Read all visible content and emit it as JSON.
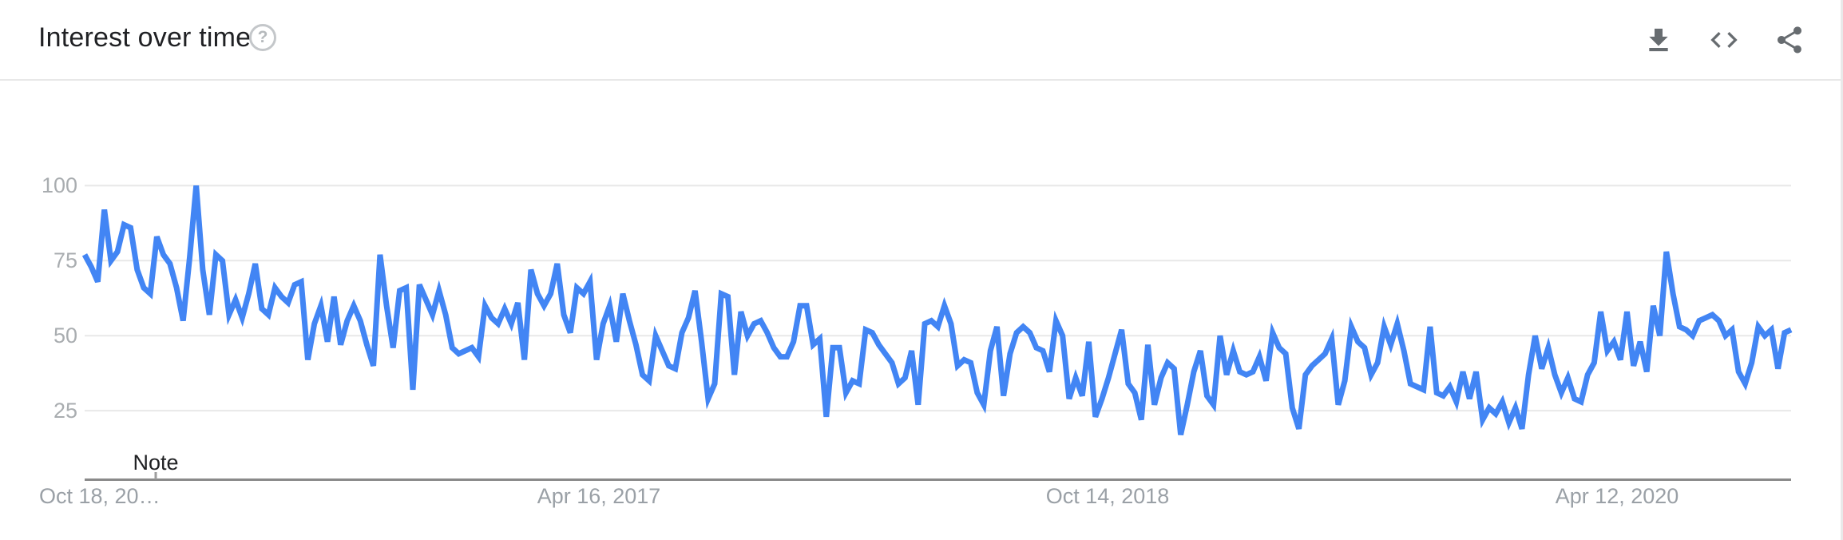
{
  "header": {
    "title": "Interest over time",
    "help_icon": "help-circle-icon",
    "help_glyph": "?",
    "action_icons": [
      "download-icon",
      "embed-code-icon",
      "share-icon"
    ]
  },
  "annotations": {
    "note_label": "Note"
  },
  "colors": {
    "line": "#4285f4",
    "gridline": "#e8e8e8",
    "axis_line": "#8a8a8a",
    "icon_gray": "#676c70",
    "x_axis_text": "#9aa0a6",
    "y_axis_text": "#a9adb0",
    "title_text": "#202124"
  },
  "chart_data": {
    "type": "line",
    "title": "Interest over time",
    "x_cadence": "weekly",
    "x_tick_labels": [
      "Oct 18, 20…",
      "Apr 16, 2017",
      "Oct 14, 2018",
      "Apr 12, 2020"
    ],
    "x_tick_week_indices": [
      0,
      78,
      156,
      234
    ],
    "y_tick_labels": [
      "100",
      "75",
      "50",
      "25"
    ],
    "ylim": [
      0,
      100
    ],
    "grid": true,
    "legend": "none",
    "series": [
      {
        "name": "interest",
        "color": "#4285f4",
        "values": [
          77,
          73,
          68,
          92,
          75,
          78,
          87,
          86,
          72,
          66,
          64,
          83,
          77,
          74,
          66,
          55,
          76,
          100,
          72,
          57,
          77,
          75,
          57,
          62,
          56,
          64,
          74,
          59,
          57,
          66,
          63,
          61,
          67,
          68,
          42,
          54,
          60,
          48,
          63,
          47,
          55,
          60,
          55,
          47,
          40,
          77,
          60,
          46,
          65,
          66,
          32,
          67,
          62,
          57,
          65,
          57,
          46,
          44,
          45,
          46,
          43,
          60,
          56,
          54,
          59,
          54,
          61,
          42,
          72,
          64,
          60,
          64,
          74,
          57,
          51,
          66,
          64,
          68,
          42,
          54,
          60,
          48,
          64,
          55,
          47,
          37,
          35,
          50,
          45,
          40,
          39,
          51,
          56,
          65,
          48,
          29,
          34,
          64,
          63,
          37,
          58,
          50,
          54,
          55,
          51,
          46,
          43,
          43,
          48,
          60,
          60,
          47,
          49,
          23,
          46,
          46,
          31,
          35,
          34,
          52,
          51,
          47,
          44,
          41,
          34,
          36,
          45,
          27,
          54,
          55,
          53,
          60,
          54,
          40,
          42,
          41,
          31,
          27,
          45,
          53,
          30,
          44,
          51,
          53,
          51,
          46,
          45,
          38,
          55,
          50,
          29,
          36,
          30,
          48,
          23,
          29,
          36,
          44,
          52,
          34,
          31,
          22,
          47,
          27,
          36,
          41,
          39,
          17,
          27,
          38,
          45,
          30,
          27,
          50,
          37,
          45,
          38,
          37,
          38,
          43,
          35,
          51,
          46,
          44,
          26,
          19,
          37,
          40,
          42,
          44,
          49,
          27,
          35,
          53,
          48,
          46,
          37,
          41,
          53,
          47,
          54,
          45,
          34,
          33,
          32,
          53,
          31,
          30,
          33,
          28,
          38,
          29,
          38,
          22,
          26,
          24,
          28,
          21,
          26,
          19,
          37,
          50,
          39,
          46,
          37,
          31,
          36,
          29,
          28,
          37,
          41,
          58,
          45,
          48,
          42,
          58,
          40,
          48,
          38,
          60,
          50,
          78,
          64,
          53,
          52,
          50,
          55,
          56,
          57,
          55,
          50,
          52,
          38,
          34,
          41,
          53,
          50,
          52,
          39,
          51,
          52
        ]
      }
    ]
  }
}
